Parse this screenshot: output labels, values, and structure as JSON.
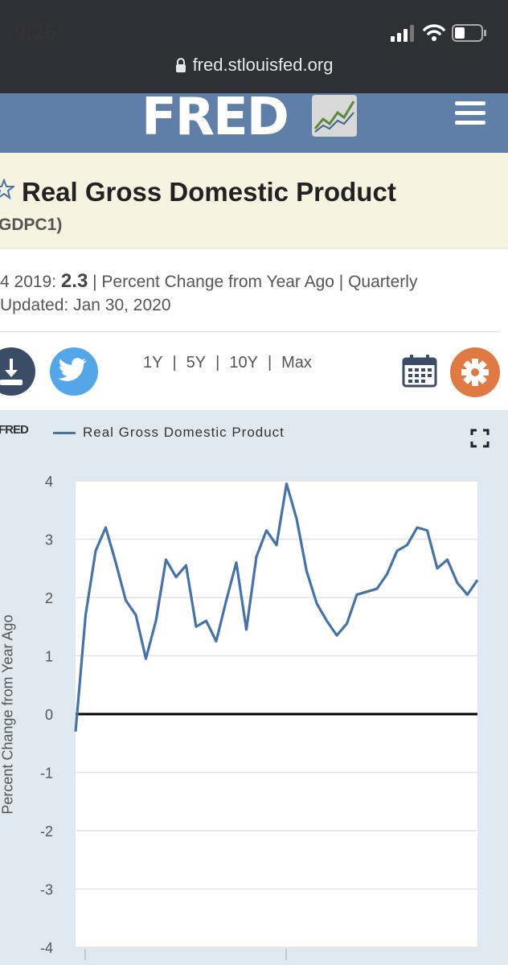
{
  "status_bar": {
    "time": "9:26",
    "url": "fred.stlouisfed.org"
  },
  "header": {
    "logo_text": "FRED"
  },
  "series": {
    "title": "Real Gross Domestic Product",
    "id_fragment": "GDPC1)",
    "observation_period": "4 2019:",
    "observation_value": "2.3",
    "units_text": "| Percent Change from Year Ago | Quarterly",
    "updated_label": "Updated:",
    "updated_date": "Jan 30, 2020"
  },
  "ranges": {
    "r1": "1Y",
    "r5": "5Y",
    "r10": "10Y",
    "rmax": "Max",
    "sep": "|"
  },
  "colors": {
    "line": "#4572a7",
    "header_bg": "#5f7fa8",
    "panel_bg": "#e1e9f0",
    "title_bg": "#f6f4e1"
  },
  "chart_data": {
    "type": "line",
    "legend_brand": "FRED",
    "legend": "Real Gross Domestic Product",
    "ylabel": "Percent Change from Year Ago",
    "xlabel": "",
    "ylim": [
      -4,
      4
    ],
    "yticks": [
      "4",
      "3",
      "2",
      "1",
      "0",
      "-1",
      "-2",
      "-3",
      "-4"
    ],
    "series": [
      {
        "name": "Real Gross Domestic Product",
        "values": [
          -0.3,
          1.7,
          2.8,
          3.2,
          2.6,
          1.95,
          1.7,
          0.95,
          1.6,
          2.65,
          2.35,
          2.55,
          1.5,
          1.6,
          1.25,
          1.95,
          2.6,
          1.45,
          2.7,
          3.15,
          2.9,
          3.95,
          3.35,
          2.45,
          1.9,
          1.6,
          1.35,
          1.55,
          2.05,
          2.1,
          2.15,
          2.4,
          2.8,
          2.9,
          3.2,
          3.15,
          2.5,
          2.65,
          2.25,
          2.05,
          2.3
        ]
      }
    ]
  }
}
